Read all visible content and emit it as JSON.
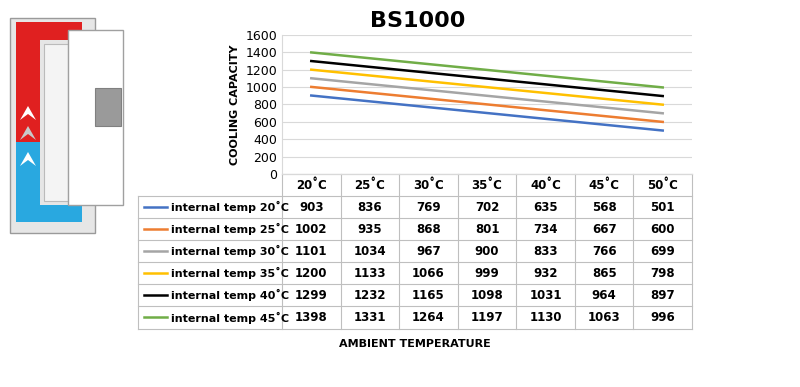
{
  "chart_data": {
    "type": "line",
    "title": "BS1000",
    "y_label": "COOLING CAPACITY",
    "x_label": "AMBIENT TEMPERATURE",
    "categories": [
      "20˚C",
      "25˚C",
      "30˚C",
      "35˚C",
      "40˚C",
      "45˚C",
      "50˚C"
    ],
    "ylim": [
      0,
      1600
    ],
    "yticks": [
      0,
      200,
      400,
      600,
      800,
      1000,
      1200,
      1400,
      1600
    ],
    "grid": true,
    "tick_labels": "y",
    "series": [
      {
        "name": "internal temp 20˚C",
        "color": "#4472c4",
        "values": [
          903,
          836,
          769,
          702,
          635,
          568,
          501
        ]
      },
      {
        "name": "internal temp 25˚C",
        "color": "#ed7d31",
        "values": [
          1002,
          935,
          868,
          801,
          734,
          667,
          600
        ]
      },
      {
        "name": "internal temp 30˚C",
        "color": "#a5a5a5",
        "values": [
          1101,
          1034,
          967,
          900,
          833,
          766,
          699
        ]
      },
      {
        "name": "internal temp 35˚C",
        "color": "#ffc000",
        "values": [
          1200,
          1133,
          1066,
          999,
          932,
          865,
          798
        ]
      },
      {
        "name": "internal temp 40˚C",
        "color": "#000000",
        "values": [
          1299,
          1232,
          1165,
          1098,
          1031,
          964,
          897
        ]
      },
      {
        "name": "internal temp 45˚C",
        "color": "#70ad47",
        "values": [
          1398,
          1331,
          1264,
          1197,
          1130,
          1063,
          996
        ]
      }
    ]
  }
}
